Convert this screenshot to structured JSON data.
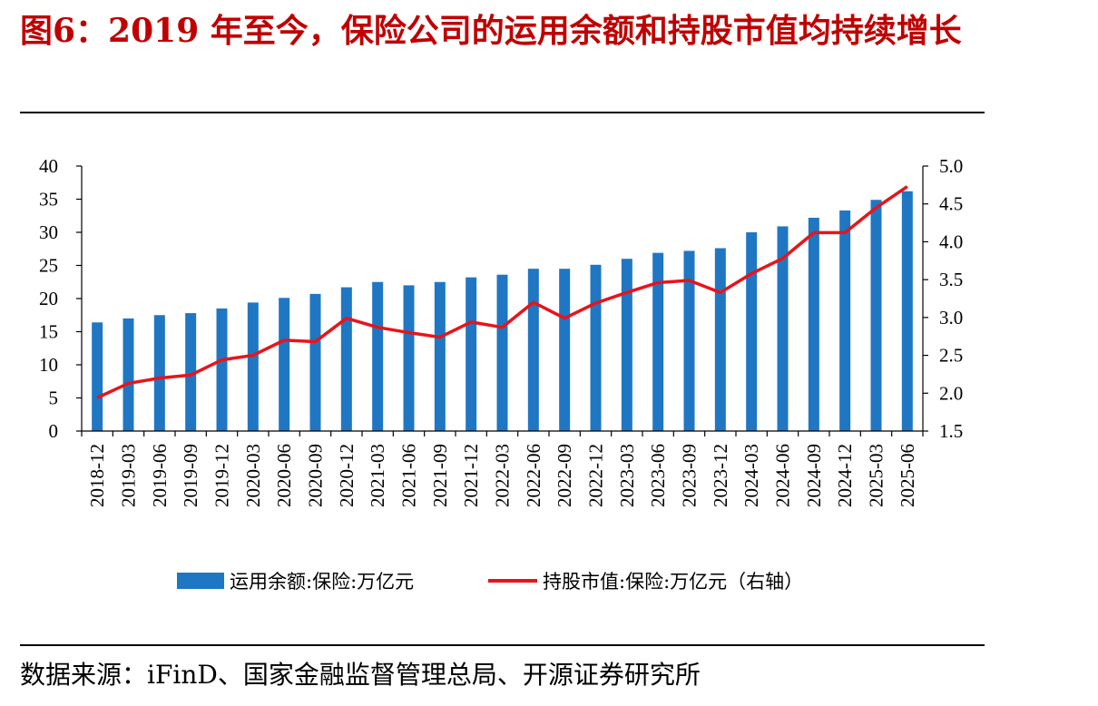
{
  "title": "图6：2019 年至今，保险公司的运用余额和持股市值均持续增长",
  "source": "数据来源：iFinD、国家金融监督管理总局、开源证券研究所",
  "chart_data": {
    "type": "bar+line",
    "categories": [
      "2018-12",
      "2019-03",
      "2019-06",
      "2019-09",
      "2019-12",
      "2020-03",
      "2020-06",
      "2020-09",
      "2020-12",
      "2021-03",
      "2021-06",
      "2021-09",
      "2021-12",
      "2022-03",
      "2022-06",
      "2022-09",
      "2022-12",
      "2023-03",
      "2023-06",
      "2023-09",
      "2023-12",
      "2024-03",
      "2024-06",
      "2024-09",
      "2024-12",
      "2025-03",
      "2025-06"
    ],
    "series": [
      {
        "name": "运用余额:保险:万亿元",
        "kind": "bar",
        "axis": "left",
        "color": "#1f77c4",
        "values": [
          16.4,
          17.0,
          17.5,
          17.8,
          18.5,
          19.4,
          20.1,
          20.7,
          21.7,
          22.5,
          22.0,
          22.5,
          23.2,
          23.6,
          24.5,
          24.5,
          25.1,
          26.0,
          26.9,
          27.2,
          27.6,
          30.0,
          30.9,
          32.2,
          33.3,
          34.9,
          36.2
        ]
      },
      {
        "name": "持股市值:保险:万亿元（右轴）",
        "kind": "line",
        "axis": "right",
        "color": "#e8141b",
        "values": [
          1.94,
          2.13,
          2.2,
          2.24,
          2.44,
          2.5,
          2.7,
          2.68,
          2.99,
          2.87,
          2.8,
          2.74,
          2.94,
          2.87,
          3.2,
          2.99,
          3.19,
          3.33,
          3.46,
          3.49,
          3.33,
          3.58,
          3.78,
          4.12,
          4.12,
          4.45,
          4.73
        ]
      }
    ],
    "y_left": {
      "range": [
        0,
        40
      ],
      "ticks": [
        "0",
        "5",
        "10",
        "15",
        "20",
        "25",
        "30",
        "35",
        "40"
      ]
    },
    "y_right": {
      "range": [
        1.5,
        5.0
      ],
      "ticks": [
        "1.5",
        "2.0",
        "2.5",
        "3.0",
        "3.5",
        "4.0",
        "4.5",
        "5.0"
      ]
    },
    "grid": false,
    "legend": "bottom-center"
  }
}
